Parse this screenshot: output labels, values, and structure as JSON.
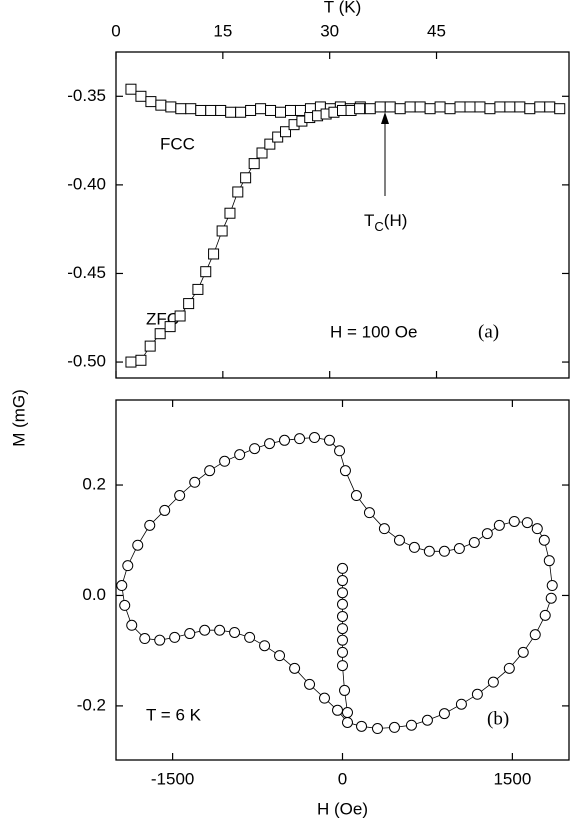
{
  "chart_data": [
    {
      "type": "scatter",
      "marker": "square",
      "connect": true,
      "color": "#000000",
      "xlabel": "T (K)",
      "xaxis_position": "top",
      "xlim": [
        0,
        63.6
      ],
      "xticks": [
        0,
        15,
        30,
        45
      ],
      "ylim": [
        -0.509,
        -0.325
      ],
      "yticks": [
        -0.35,
        {
          "value": -0.4,
          "label": "-0.40"
        },
        -0.45,
        {
          "value": -0.5,
          "label": "-0.50"
        }
      ],
      "series": [
        {
          "name": "FCC",
          "x": [
            2.1,
            3.5,
            4.9,
            6.3,
            7.7,
            9.1,
            10.5,
            11.9,
            13.3,
            14.7,
            16.1,
            17.5,
            18.9,
            20.3,
            21.7,
            23.1,
            24.5,
            25.9,
            27.3,
            28.7,
            30.1,
            31.5,
            32.9,
            34.3,
            35.7,
            37.1,
            38.5,
            39.9,
            41.3,
            42.7,
            44.1,
            45.5,
            46.9,
            48.3,
            49.7,
            51.1,
            52.5,
            53.9,
            55.3,
            56.7,
            58.1,
            59.5,
            60.9,
            62.3
          ],
          "values": [
            -0.346,
            -0.35,
            -0.353,
            -0.355,
            -0.356,
            -0.357,
            -0.357,
            -0.358,
            -0.358,
            -0.358,
            -0.359,
            -0.359,
            -0.358,
            -0.357,
            -0.358,
            -0.359,
            -0.358,
            -0.358,
            -0.357,
            -0.356,
            -0.357,
            -0.356,
            -0.357,
            -0.356,
            -0.357,
            -0.356,
            -0.356,
            -0.357,
            -0.356,
            -0.356,
            -0.357,
            -0.356,
            -0.357,
            -0.356,
            -0.356,
            -0.356,
            -0.357,
            -0.356,
            -0.356,
            -0.356,
            -0.357,
            -0.356,
            -0.356,
            -0.357
          ]
        },
        {
          "name": "ZFC",
          "x": [
            2.1,
            3.5,
            4.8,
            6.2,
            7.6,
            9.0,
            10.2,
            11.5,
            12.6,
            13.7,
            14.9,
            16.0,
            17.1,
            18.2,
            19.4,
            20.5,
            21.6,
            22.7,
            23.8,
            25.0,
            26.1,
            27.2,
            28.3,
            29.5,
            30.6,
            31.8,
            33.0,
            34.2
          ],
          "values": [
            -0.5,
            -0.499,
            -0.491,
            -0.484,
            -0.48,
            -0.474,
            -0.467,
            -0.459,
            -0.449,
            -0.439,
            -0.426,
            -0.416,
            -0.404,
            -0.396,
            -0.388,
            -0.382,
            -0.377,
            -0.373,
            -0.37,
            -0.366,
            -0.364,
            -0.362,
            -0.361,
            -0.36,
            -0.359,
            -0.358,
            -0.358,
            -0.357
          ]
        }
      ],
      "annotations": {
        "fcc": "FCC",
        "zfc": "ZFC",
        "field": "H = 100 Oe",
        "panel": "(a)",
        "tc": {
          "main": "T",
          "sub": "C",
          "rest": "(H)"
        }
      }
    },
    {
      "type": "scatter",
      "marker": "circle",
      "connect": true,
      "color": "#000000",
      "xlabel": "H (Oe)",
      "ylabel": "M (mG)",
      "xaxis_position": "bottom",
      "xlim": [
        -2000,
        2000
      ],
      "xticks": [
        -1500,
        0,
        1500
      ],
      "ylim": [
        -0.298,
        0.354
      ],
      "yticks": [
        -0.2,
        {
          "value": 0,
          "label": "0.0"
        },
        0.2
      ],
      "series": [
        {
          "x": [
            0,
            0,
            0,
            0,
            0,
            0,
            0,
            0,
            0,
            18,
            44
          ],
          "values": [
            0.049,
            0.027,
            0.005,
            -0.016,
            -0.038,
            -0.06,
            -0.081,
            -0.103,
            -0.127,
            -0.172,
            -0.212
          ]
        },
        {
          "x": [
            1852,
            1826,
            1782,
            1720,
            1632,
            1517,
            1385,
            1279,
            1164,
            1032,
            900,
            767,
            635,
            503,
            370,
            238,
            123,
            26,
            -26,
            -115,
            -247,
            -379,
            -512,
            -644,
            -776,
            -908,
            -1041,
            -1173,
            -1305,
            -1438,
            -1570,
            -1702,
            -1808,
            -1896,
            -1949,
            -1923,
            -1861,
            -1746,
            -1614,
            -1482,
            -1349,
            -1217,
            -1085,
            -953,
            -820,
            -688,
            -556,
            -423,
            -291,
            -159,
            -44,
            44,
            168,
            309,
            459,
            609,
            750,
            900,
            1050,
            1191,
            1332,
            1473,
            1596,
            1702,
            1790,
            1843
          ],
          "values": [
            0.018,
            0.063,
            0.1,
            0.121,
            0.132,
            0.134,
            0.127,
            0.112,
            0.096,
            0.085,
            0.08,
            0.08,
            0.087,
            0.1,
            0.121,
            0.15,
            0.181,
            0.226,
            0.262,
            0.281,
            0.286,
            0.284,
            0.281,
            0.275,
            0.266,
            0.255,
            0.243,
            0.226,
            0.205,
            0.181,
            0.154,
            0.127,
            0.091,
            0.054,
            0.018,
            -0.018,
            -0.054,
            -0.078,
            -0.081,
            -0.076,
            -0.069,
            -0.063,
            -0.063,
            -0.067,
            -0.076,
            -0.091,
            -0.109,
            -0.132,
            -0.161,
            -0.186,
            -0.208,
            -0.23,
            -0.237,
            -0.241,
            -0.239,
            -0.235,
            -0.226,
            -0.214,
            -0.197,
            -0.179,
            -0.157,
            -0.132,
            -0.103,
            -0.071,
            -0.036,
            -0.005
          ]
        }
      ],
      "annotations": {
        "temp": "T = 6 K",
        "panel": "(b)"
      }
    }
  ]
}
